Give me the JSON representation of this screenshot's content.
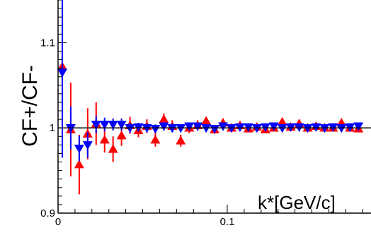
{
  "chart_data": {
    "type": "scatter",
    "xlabel": "k*[GeV/c]",
    "ylabel": "CF+/CF-",
    "xlim": [
      0,
      0.2
    ],
    "ylim": [
      0.9,
      1.15
    ],
    "x_ticks": [
      {
        "value": 0,
        "label": "0"
      },
      {
        "value": 0.1,
        "label": "0.1"
      }
    ],
    "y_ticks": [
      {
        "value": 0.9,
        "label": "0.9"
      },
      {
        "value": 1.0,
        "label": "1"
      },
      {
        "value": 1.1,
        "label": "1.1"
      }
    ],
    "reference_line": 1.0,
    "grid": false,
    "series": [
      {
        "color": "#ff0000",
        "marker": "triangle-up",
        "points": [
          {
            "x": 0.0025,
            "y": 1.072,
            "err": 0.02
          },
          {
            "x": 0.0075,
            "y": 0.998,
            "err": 0.055
          },
          {
            "x": 0.0125,
            "y": 0.957,
            "err": 0.035
          },
          {
            "x": 0.0175,
            "y": 0.993,
            "err": 0.03
          },
          {
            "x": 0.0225,
            "y": 1.005,
            "err": 0.025
          },
          {
            "x": 0.0275,
            "y": 0.986,
            "err": 0.015
          },
          {
            "x": 0.0325,
            "y": 0.975,
            "err": 0.015
          },
          {
            "x": 0.0375,
            "y": 0.991,
            "err": 0.012
          },
          {
            "x": 0.0425,
            "y": 1.003,
            "err": 0.01
          },
          {
            "x": 0.0475,
            "y": 0.997,
            "err": 0.008
          },
          {
            "x": 0.0525,
            "y": 1.002,
            "err": 0.008
          },
          {
            "x": 0.0575,
            "y": 0.986,
            "err": 0.008
          },
          {
            "x": 0.0625,
            "y": 1.01,
            "err": 0.007
          },
          {
            "x": 0.0675,
            "y": 1.002,
            "err": 0.007
          },
          {
            "x": 0.0725,
            "y": 0.985,
            "err": 0.007
          },
          {
            "x": 0.0775,
            "y": 1.0,
            "err": 0.006
          },
          {
            "x": 0.0825,
            "y": 1.003,
            "err": 0.006
          },
          {
            "x": 0.0875,
            "y": 1.008,
            "err": 0.005
          },
          {
            "x": 0.0925,
            "y": 0.998,
            "err": 0.005
          },
          {
            "x": 0.0975,
            "y": 1.006,
            "err": 0.005
          },
          {
            "x": 0.1025,
            "y": 1.0,
            "err": 0.005
          },
          {
            "x": 0.1075,
            "y": 1.003,
            "err": 0.004
          },
          {
            "x": 0.1125,
            "y": 0.999,
            "err": 0.004
          },
          {
            "x": 0.1175,
            "y": 1.001,
            "err": 0.004
          },
          {
            "x": 0.1225,
            "y": 0.998,
            "err": 0.004
          },
          {
            "x": 0.1275,
            "y": 1.0,
            "err": 0.004
          },
          {
            "x": 0.1325,
            "y": 1.007,
            "err": 0.004
          },
          {
            "x": 0.1375,
            "y": 1.001,
            "err": 0.004
          },
          {
            "x": 0.1425,
            "y": 1.005,
            "err": 0.004
          },
          {
            "x": 0.1475,
            "y": 1.0,
            "err": 0.004
          },
          {
            "x": 0.1525,
            "y": 1.002,
            "err": 0.004
          },
          {
            "x": 0.1575,
            "y": 1.0,
            "err": 0.004
          },
          {
            "x": 0.1625,
            "y": 1.0,
            "err": 0.004
          },
          {
            "x": 0.1675,
            "y": 1.006,
            "err": 0.004
          },
          {
            "x": 0.1725,
            "y": 1.0,
            "err": 0.004
          },
          {
            "x": 0.1775,
            "y": 0.999,
            "err": 0.004
          }
        ]
      },
      {
        "color": "#0000ff",
        "marker": "triangle-down",
        "points": [
          {
            "x": 0.0025,
            "y": 1.065,
            "err": 0.1
          },
          {
            "x": 0.0075,
            "y": 1.0,
            "err": 0.025
          },
          {
            "x": 0.0125,
            "y": 0.976,
            "err": 0.015
          },
          {
            "x": 0.0175,
            "y": 0.98,
            "err": 0.015
          },
          {
            "x": 0.0225,
            "y": 1.004,
            "err": 0.01
          },
          {
            "x": 0.0275,
            "y": 1.004,
            "err": 0.008
          },
          {
            "x": 0.0325,
            "y": 1.004,
            "err": 0.007
          },
          {
            "x": 0.0375,
            "y": 1.004,
            "err": 0.007
          },
          {
            "x": 0.0425,
            "y": 1.0,
            "err": 0.006
          },
          {
            "x": 0.0475,
            "y": 1.001,
            "err": 0.005
          },
          {
            "x": 0.0525,
            "y": 1.0,
            "err": 0.005
          },
          {
            "x": 0.0575,
            "y": 0.999,
            "err": 0.005
          },
          {
            "x": 0.0625,
            "y": 1.002,
            "err": 0.005
          },
          {
            "x": 0.0675,
            "y": 1.0,
            "err": 0.005
          },
          {
            "x": 0.0725,
            "y": 1.0,
            "err": 0.004
          },
          {
            "x": 0.0775,
            "y": 1.002,
            "err": 0.004
          },
          {
            "x": 0.0825,
            "y": 1.002,
            "err": 0.004
          },
          {
            "x": 0.0875,
            "y": 1.0,
            "err": 0.004
          },
          {
            "x": 0.0925,
            "y": 0.999,
            "err": 0.004
          },
          {
            "x": 0.0975,
            "y": 1.002,
            "err": 0.004
          },
          {
            "x": 0.1025,
            "y": 1.0,
            "err": 0.004
          },
          {
            "x": 0.1075,
            "y": 1.001,
            "err": 0.004
          },
          {
            "x": 0.1125,
            "y": 1.001,
            "err": 0.004
          },
          {
            "x": 0.1175,
            "y": 1.0,
            "err": 0.003
          },
          {
            "x": 0.1225,
            "y": 1.001,
            "err": 0.003
          },
          {
            "x": 0.1275,
            "y": 1.002,
            "err": 0.003
          },
          {
            "x": 0.1325,
            "y": 1.0,
            "err": 0.003
          },
          {
            "x": 0.1375,
            "y": 1.001,
            "err": 0.003
          },
          {
            "x": 0.1425,
            "y": 1.001,
            "err": 0.003
          },
          {
            "x": 0.1475,
            "y": 1.0,
            "err": 0.003
          },
          {
            "x": 0.1525,
            "y": 1.001,
            "err": 0.003
          },
          {
            "x": 0.1575,
            "y": 1.0,
            "err": 0.003
          },
          {
            "x": 0.1625,
            "y": 1.001,
            "err": 0.003
          },
          {
            "x": 0.1675,
            "y": 1.0,
            "err": 0.003
          },
          {
            "x": 0.1725,
            "y": 1.001,
            "err": 0.003
          },
          {
            "x": 0.1775,
            "y": 1.002,
            "err": 0.003
          }
        ]
      }
    ]
  }
}
